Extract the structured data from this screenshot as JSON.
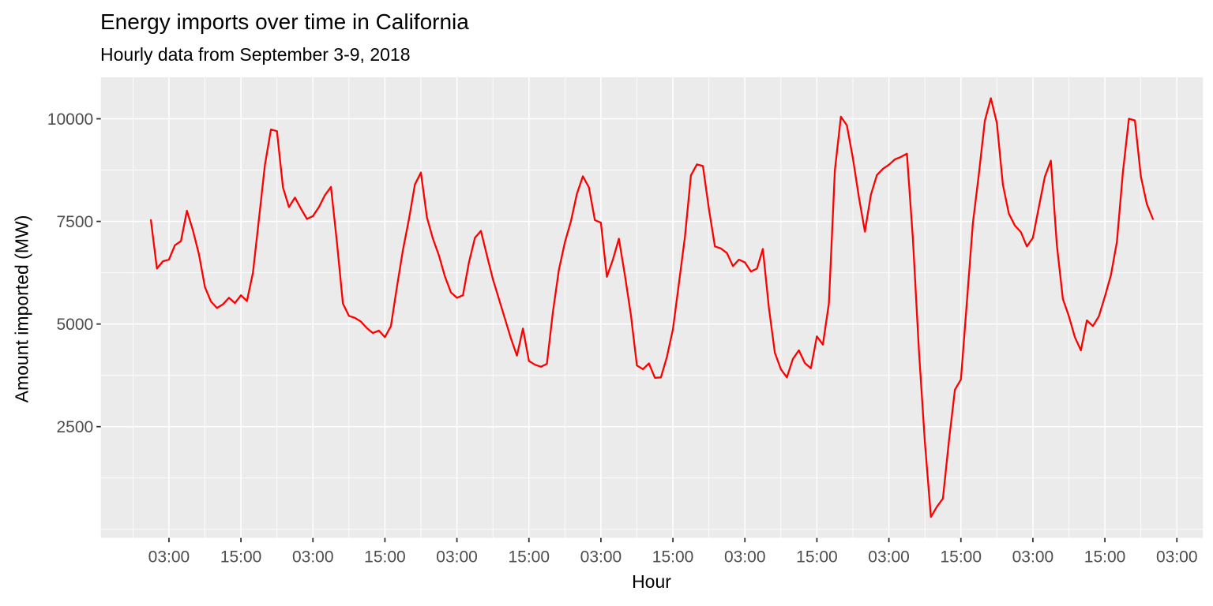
{
  "title": "Energy imports over time in California",
  "subtitle": "Hourly data from September 3-9, 2018",
  "chart_data": {
    "type": "line",
    "title": "Energy imports over time in California",
    "subtitle": "Hourly data from September 3-9, 2018",
    "xlabel": "Hour",
    "ylabel": "Amount imported (MW)",
    "x_description": "hourly observations, hours counted from 2018-09-03 00:00",
    "x_domain": [
      -8.35,
      175.35
    ],
    "y_domain": [
      -210,
      11010
    ],
    "grid": true,
    "legend": false,
    "x_ticks": [
      {
        "hour": 3,
        "label": "03:00"
      },
      {
        "hour": 15,
        "label": "15:00"
      },
      {
        "hour": 27,
        "label": "03:00"
      },
      {
        "hour": 39,
        "label": "15:00"
      },
      {
        "hour": 51,
        "label": "03:00"
      },
      {
        "hour": 63,
        "label": "15:00"
      },
      {
        "hour": 75,
        "label": "03:00"
      },
      {
        "hour": 87,
        "label": "15:00"
      },
      {
        "hour": 99,
        "label": "03:00"
      },
      {
        "hour": 111,
        "label": "15:00"
      },
      {
        "hour": 123,
        "label": "03:00"
      },
      {
        "hour": 135,
        "label": "15:00"
      },
      {
        "hour": 147,
        "label": "03:00"
      },
      {
        "hour": 159,
        "label": "15:00"
      },
      {
        "hour": 171,
        "label": "03:00"
      }
    ],
    "x_minor_hours": [
      -3,
      9,
      21,
      33,
      45,
      57,
      69,
      81,
      93,
      105,
      117,
      129,
      141,
      153,
      165
    ],
    "y_ticks": [
      2500,
      5000,
      7500,
      10000
    ],
    "y_minor": [
      0,
      1250,
      3750,
      6250,
      8750
    ],
    "colors": {
      "line": "#FF0000",
      "panel": "#EBEBEB",
      "grid": "#FFFFFF",
      "tick_label": "#4D4D4D",
      "tick_mark": "#333333",
      "text": "#000000",
      "background": "#FFFFFF"
    },
    "series": [
      {
        "name": "Amount imported (MW)",
        "start_hour": 0,
        "step_hours": 1,
        "values": [
          7530,
          6350,
          6530,
          6570,
          6920,
          7020,
          7760,
          7280,
          6700,
          5900,
          5550,
          5390,
          5480,
          5640,
          5510,
          5700,
          5560,
          6250,
          7560,
          8880,
          9740,
          9700,
          8330,
          7850,
          8080,
          7810,
          7560,
          7630,
          7850,
          8140,
          8340,
          7000,
          5500,
          5200,
          5150,
          5060,
          4900,
          4780,
          4840,
          4680,
          4950,
          5900,
          6800,
          7550,
          8400,
          8690,
          7600,
          7080,
          6670,
          6160,
          5770,
          5640,
          5700,
          6500,
          7100,
          7270,
          6670,
          6090,
          5610,
          5130,
          4650,
          4230,
          4890,
          4100,
          4010,
          3960,
          4030,
          5290,
          6320,
          6990,
          7500,
          8170,
          8600,
          8330,
          7530,
          7470,
          6150,
          6570,
          7080,
          6190,
          5220,
          3990,
          3900,
          4040,
          3690,
          3700,
          4200,
          4870,
          5990,
          7120,
          8620,
          8890,
          8850,
          7800,
          6890,
          6840,
          6730,
          6410,
          6570,
          6500,
          6280,
          6350,
          6830,
          5400,
          4300,
          3900,
          3700,
          4150,
          4360,
          4050,
          3920,
          4700,
          4500,
          5500,
          8750,
          10050,
          9840,
          9040,
          8090,
          7250,
          8150,
          8630,
          8780,
          8880,
          9010,
          9070,
          9150,
          7070,
          4360,
          2110,
          300,
          550,
          750,
          2150,
          3400,
          3650,
          5550,
          7450,
          8650,
          9950,
          10500,
          9900,
          8400,
          7690,
          7400,
          7240,
          6890,
          7100,
          7850,
          8590,
          8980,
          6920,
          5610,
          5190,
          4680,
          4360,
          5090,
          4950,
          5190,
          5670,
          6190,
          7000,
          8700,
          10000,
          9960,
          8590,
          7920,
          7560
        ]
      }
    ]
  }
}
